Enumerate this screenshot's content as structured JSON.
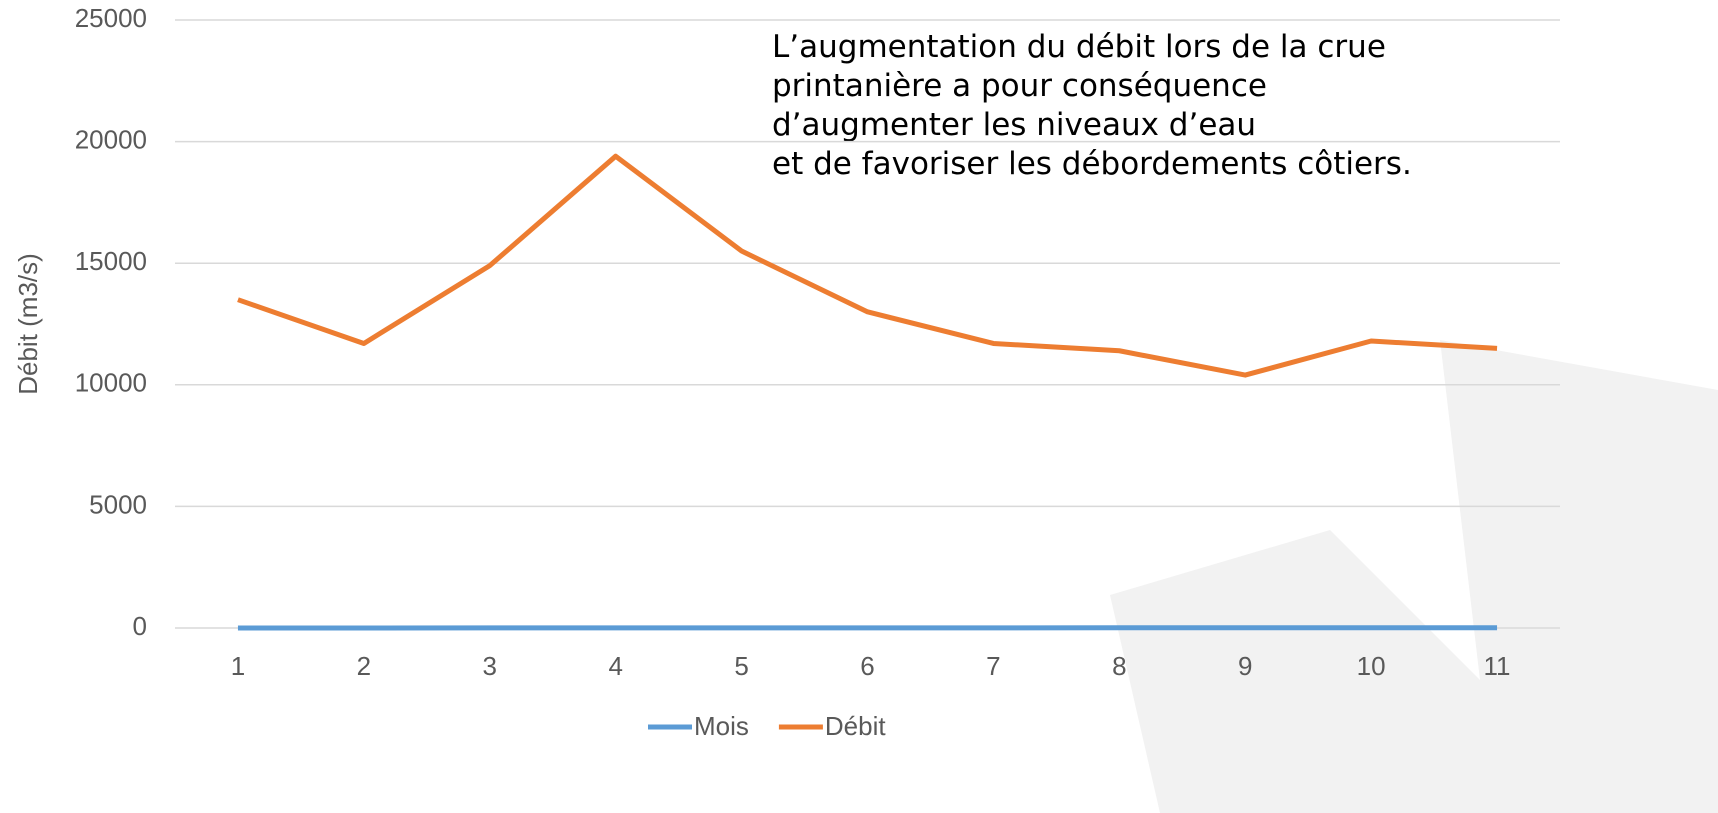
{
  "chart_data": {
    "type": "line",
    "ylabel": "Débit (m3/s)",
    "annotation": [
      "L’augmentation du débit lors de la crue",
      "printanière a pour conséquence",
      "d’augmenter les niveaux d’eau",
      "et de favoriser les débordements côtiers."
    ],
    "categories": [
      "1",
      "2",
      "3",
      "4",
      "5",
      "6",
      "7",
      "8",
      "9",
      "10",
      "11"
    ],
    "series": [
      {
        "name": "Mois",
        "color": "#5b9bd5",
        "values": [
          1,
          2,
          3,
          4,
          5,
          6,
          7,
          8,
          9,
          10,
          11
        ]
      },
      {
        "name": "Débit",
        "color": "#ed7d31",
        "values": [
          13500,
          11700,
          14900,
          19400,
          15500,
          13000,
          11700,
          11400,
          10400,
          11800,
          11500
        ]
      }
    ],
    "ylim": [
      0,
      25000
    ],
    "yticks": [
      0,
      5000,
      10000,
      15000,
      20000,
      25000
    ],
    "grid": true,
    "legend": "bottom"
  }
}
